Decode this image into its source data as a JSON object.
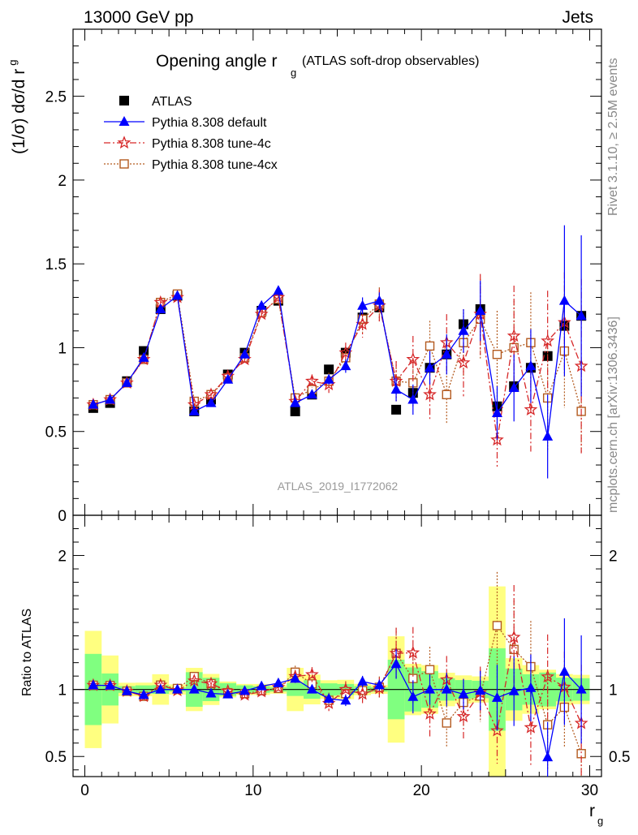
{
  "header": {
    "left": "13000 GeV pp",
    "right": "Jets"
  },
  "side_labels": {
    "rivet": "Rivet 3.1.10, ≥ 2.5M events",
    "mcplots": "mcplots.cern.ch [arXiv:1306.3436]"
  },
  "chart_data": {
    "type": "scatter",
    "title": "Opening angle r_g (ATLAS soft-drop observables)",
    "title_main": "Opening angle r",
    "title_sub": "g",
    "title_note": "(ATLAS soft-drop observables)",
    "analysis_label": "ATLAS_2019_I1772062",
    "ylabel": "(1/σ) dσ/d r_g",
    "ratio_ylabel": "Ratio to ATLAS",
    "xlabel": "r_g",
    "xlim": [
      -0.7,
      30.7
    ],
    "ylim": [
      0,
      2.9
    ],
    "ratio_ylim": [
      0.35,
      2.3
    ],
    "grid": false,
    "legend_position": "top-left",
    "x_ticks": [
      "0",
      "10",
      "20",
      "30"
    ],
    "y_ticks": [
      "0",
      "0.5",
      "1",
      "1.5",
      "2",
      "2.5"
    ],
    "ratio_ticks": [
      "0.5",
      "1",
      "2"
    ],
    "x": [
      0.5,
      1.5,
      2.5,
      3.5,
      4.5,
      5.5,
      6.5,
      7.5,
      8.5,
      9.5,
      10.5,
      11.5,
      12.5,
      13.5,
      14.5,
      15.5,
      16.5,
      17.5,
      18.5,
      19.5,
      20.5,
      21.5,
      22.5,
      23.5,
      24.5,
      25.5,
      26.5,
      27.5,
      28.5,
      29.5
    ],
    "series": [
      {
        "name": "ATLAS",
        "color": "#000000",
        "marker": "square-filled",
        "values": [
          0.64,
          0.67,
          0.8,
          0.98,
          1.23,
          1.31,
          0.62,
          0.69,
          0.84,
          0.97,
          1.22,
          1.28,
          0.62,
          0.72,
          0.87,
          0.97,
          1.18,
          1.24,
          0.63,
          0.73,
          0.88,
          0.96,
          1.14,
          1.23,
          0.65,
          0.77,
          0.88,
          0.95,
          1.13,
          1.19
        ],
        "band_stat": [
          0.17,
          0.08,
          0.02,
          0.03,
          0.04,
          0.02,
          0.08,
          0.06,
          0.04,
          0.03,
          0.03,
          0.02,
          0.03,
          0.05,
          0.04,
          0.04,
          0.03,
          0.02,
          0.14,
          0.12,
          0.12,
          0.08,
          0.08,
          0.08,
          0.2,
          0.12,
          0.1,
          0.12,
          0.1,
          0.1
        ],
        "band_total": [
          0.28,
          0.17,
          0.04,
          0.05,
          0.14,
          0.05,
          0.1,
          0.08,
          0.05,
          0.04,
          0.05,
          0.04,
          0.1,
          0.08,
          0.06,
          0.07,
          0.05,
          0.04,
          0.25,
          0.14,
          0.16,
          0.12,
          0.12,
          0.12,
          0.5,
          0.18,
          0.16,
          0.14,
          0.13,
          0.13
        ]
      },
      {
        "name": "Pythia 8.308 default",
        "color": "#0000ff",
        "marker": "triangle-filled",
        "line": "solid",
        "values": [
          0.66,
          0.69,
          0.79,
          0.94,
          1.23,
          1.31,
          0.62,
          0.67,
          0.81,
          0.96,
          1.25,
          1.34,
          0.67,
          0.72,
          0.81,
          0.89,
          1.25,
          1.28,
          0.75,
          0.69,
          0.88,
          0.96,
          1.1,
          1.22,
          0.61,
          0.76,
          0.89,
          0.47,
          1.28,
          1.19
        ],
        "errors": [
          0.01,
          0.01,
          0.01,
          0.01,
          0.01,
          0.01,
          0.01,
          0.01,
          0.01,
          0.01,
          0.02,
          0.02,
          0.02,
          0.02,
          0.03,
          0.04,
          0.05,
          0.05,
          0.07,
          0.09,
          0.1,
          0.12,
          0.13,
          0.18,
          0.16,
          0.2,
          0.22,
          0.25,
          0.45,
          0.48
        ]
      },
      {
        "name": "Pythia 8.308 tune-4c",
        "color": "#d62728",
        "marker": "star-open",
        "line": "dashdot",
        "values": [
          0.66,
          0.69,
          0.79,
          0.93,
          1.27,
          1.3,
          0.66,
          0.72,
          0.83,
          0.93,
          1.2,
          1.3,
          0.68,
          0.8,
          0.78,
          0.97,
          1.14,
          1.25,
          0.8,
          0.93,
          0.72,
          1.03,
          0.91,
          1.2,
          0.45,
          1.07,
          0.63,
          1.04,
          1.15,
          0.89
        ],
        "errors": [
          0.01,
          0.01,
          0.01,
          0.01,
          0.02,
          0.02,
          0.01,
          0.01,
          0.02,
          0.02,
          0.02,
          0.03,
          0.03,
          0.04,
          0.05,
          0.06,
          0.08,
          0.1,
          0.12,
          0.14,
          0.15,
          0.17,
          0.2,
          0.24,
          0.16,
          0.3,
          0.25,
          0.3,
          0.3,
          0.52
        ]
      },
      {
        "name": "Pythia 8.308 tune-4cx",
        "color": "#b35a1f",
        "marker": "square-open",
        "line": "dotted",
        "values": [
          0.66,
          0.69,
          0.79,
          0.93,
          1.27,
          1.32,
          0.68,
          0.72,
          0.82,
          0.94,
          1.21,
          1.29,
          0.7,
          0.75,
          0.8,
          0.94,
          1.17,
          1.26,
          0.8,
          0.79,
          1.01,
          0.72,
          1.03,
          1.17,
          0.96,
          1.0,
          1.03,
          0.7,
          0.98,
          0.62
        ],
        "errors": [
          0.01,
          0.01,
          0.01,
          0.01,
          0.02,
          0.02,
          0.01,
          0.01,
          0.02,
          0.02,
          0.02,
          0.03,
          0.03,
          0.04,
          0.05,
          0.06,
          0.08,
          0.1,
          0.12,
          0.14,
          0.15,
          0.17,
          0.2,
          0.24,
          0.26,
          0.28,
          0.3,
          0.32,
          0.34,
          0.25
        ]
      }
    ]
  }
}
